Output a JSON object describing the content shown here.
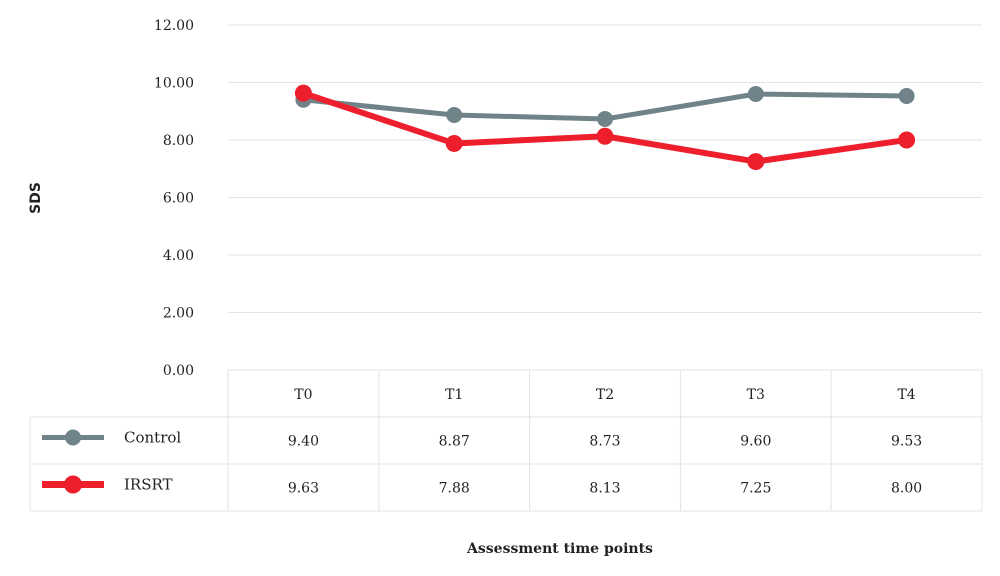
{
  "chart_data": {
    "type": "line",
    "title": "",
    "xlabel": "Assessment time points",
    "ylabel": "SDS",
    "ylim": [
      0,
      12
    ],
    "yticks": [
      "0.00",
      "2.00",
      "4.00",
      "6.00",
      "8.00",
      "10.00",
      "12.00"
    ],
    "grid": true,
    "legend": "data-table-left",
    "categories": [
      "T0",
      "T1",
      "T2",
      "T3",
      "T4"
    ],
    "series": [
      {
        "name": "Control",
        "color": "#6f8388",
        "values": [
          9.4,
          8.87,
          8.73,
          9.6,
          9.53
        ],
        "labels": [
          "9.40",
          "8.87",
          "8.73",
          "9.60",
          "9.53"
        ]
      },
      {
        "name": "IRSRT",
        "color": "#ee1f2d",
        "values": [
          9.63,
          7.88,
          8.13,
          7.25,
          8.0
        ],
        "labels": [
          "9.63",
          "7.88",
          "8.13",
          "7.25",
          "8.00"
        ]
      }
    ]
  }
}
